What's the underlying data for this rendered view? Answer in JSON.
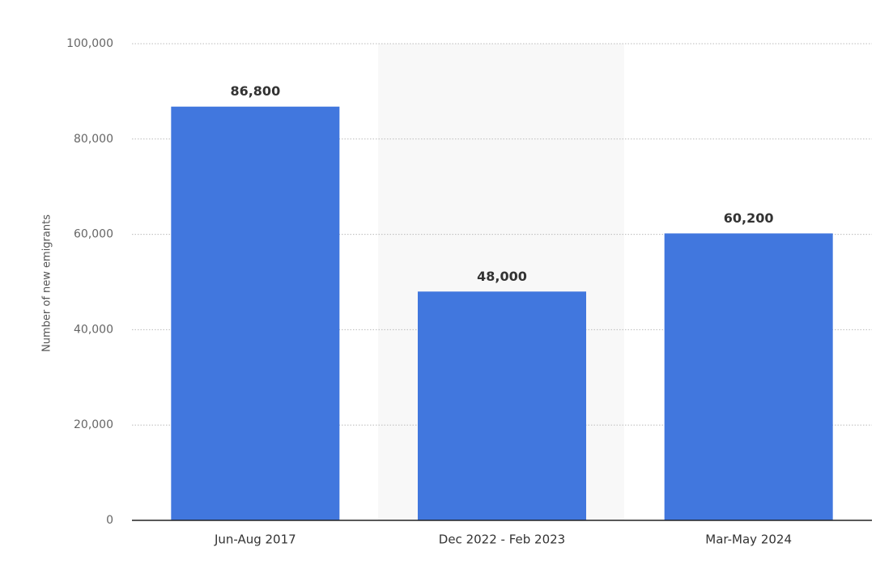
{
  "chart_data": {
    "type": "bar",
    "y_axis_label": "Number of new emigrants",
    "categories": [
      "Jun-Aug 2017",
      "Dec 2022 - Feb 2023",
      "Mar-May 2024"
    ],
    "values": [
      86800,
      48000,
      60200
    ],
    "value_labels": [
      "86,800",
      "48,000",
      "60,200"
    ],
    "color": "#4177de",
    "ylim": [
      0,
      100000
    ],
    "yticks": [
      0,
      {
        "value": 20000,
        "label": "20,000"
      },
      {
        "value": 40000,
        "label": "40,000"
      },
      {
        "value": 60000,
        "label": "60,000"
      },
      {
        "value": 80000,
        "label": "80,000"
      },
      {
        "value": 100000,
        "label": "100,000"
      }
    ],
    "grid": true
  }
}
